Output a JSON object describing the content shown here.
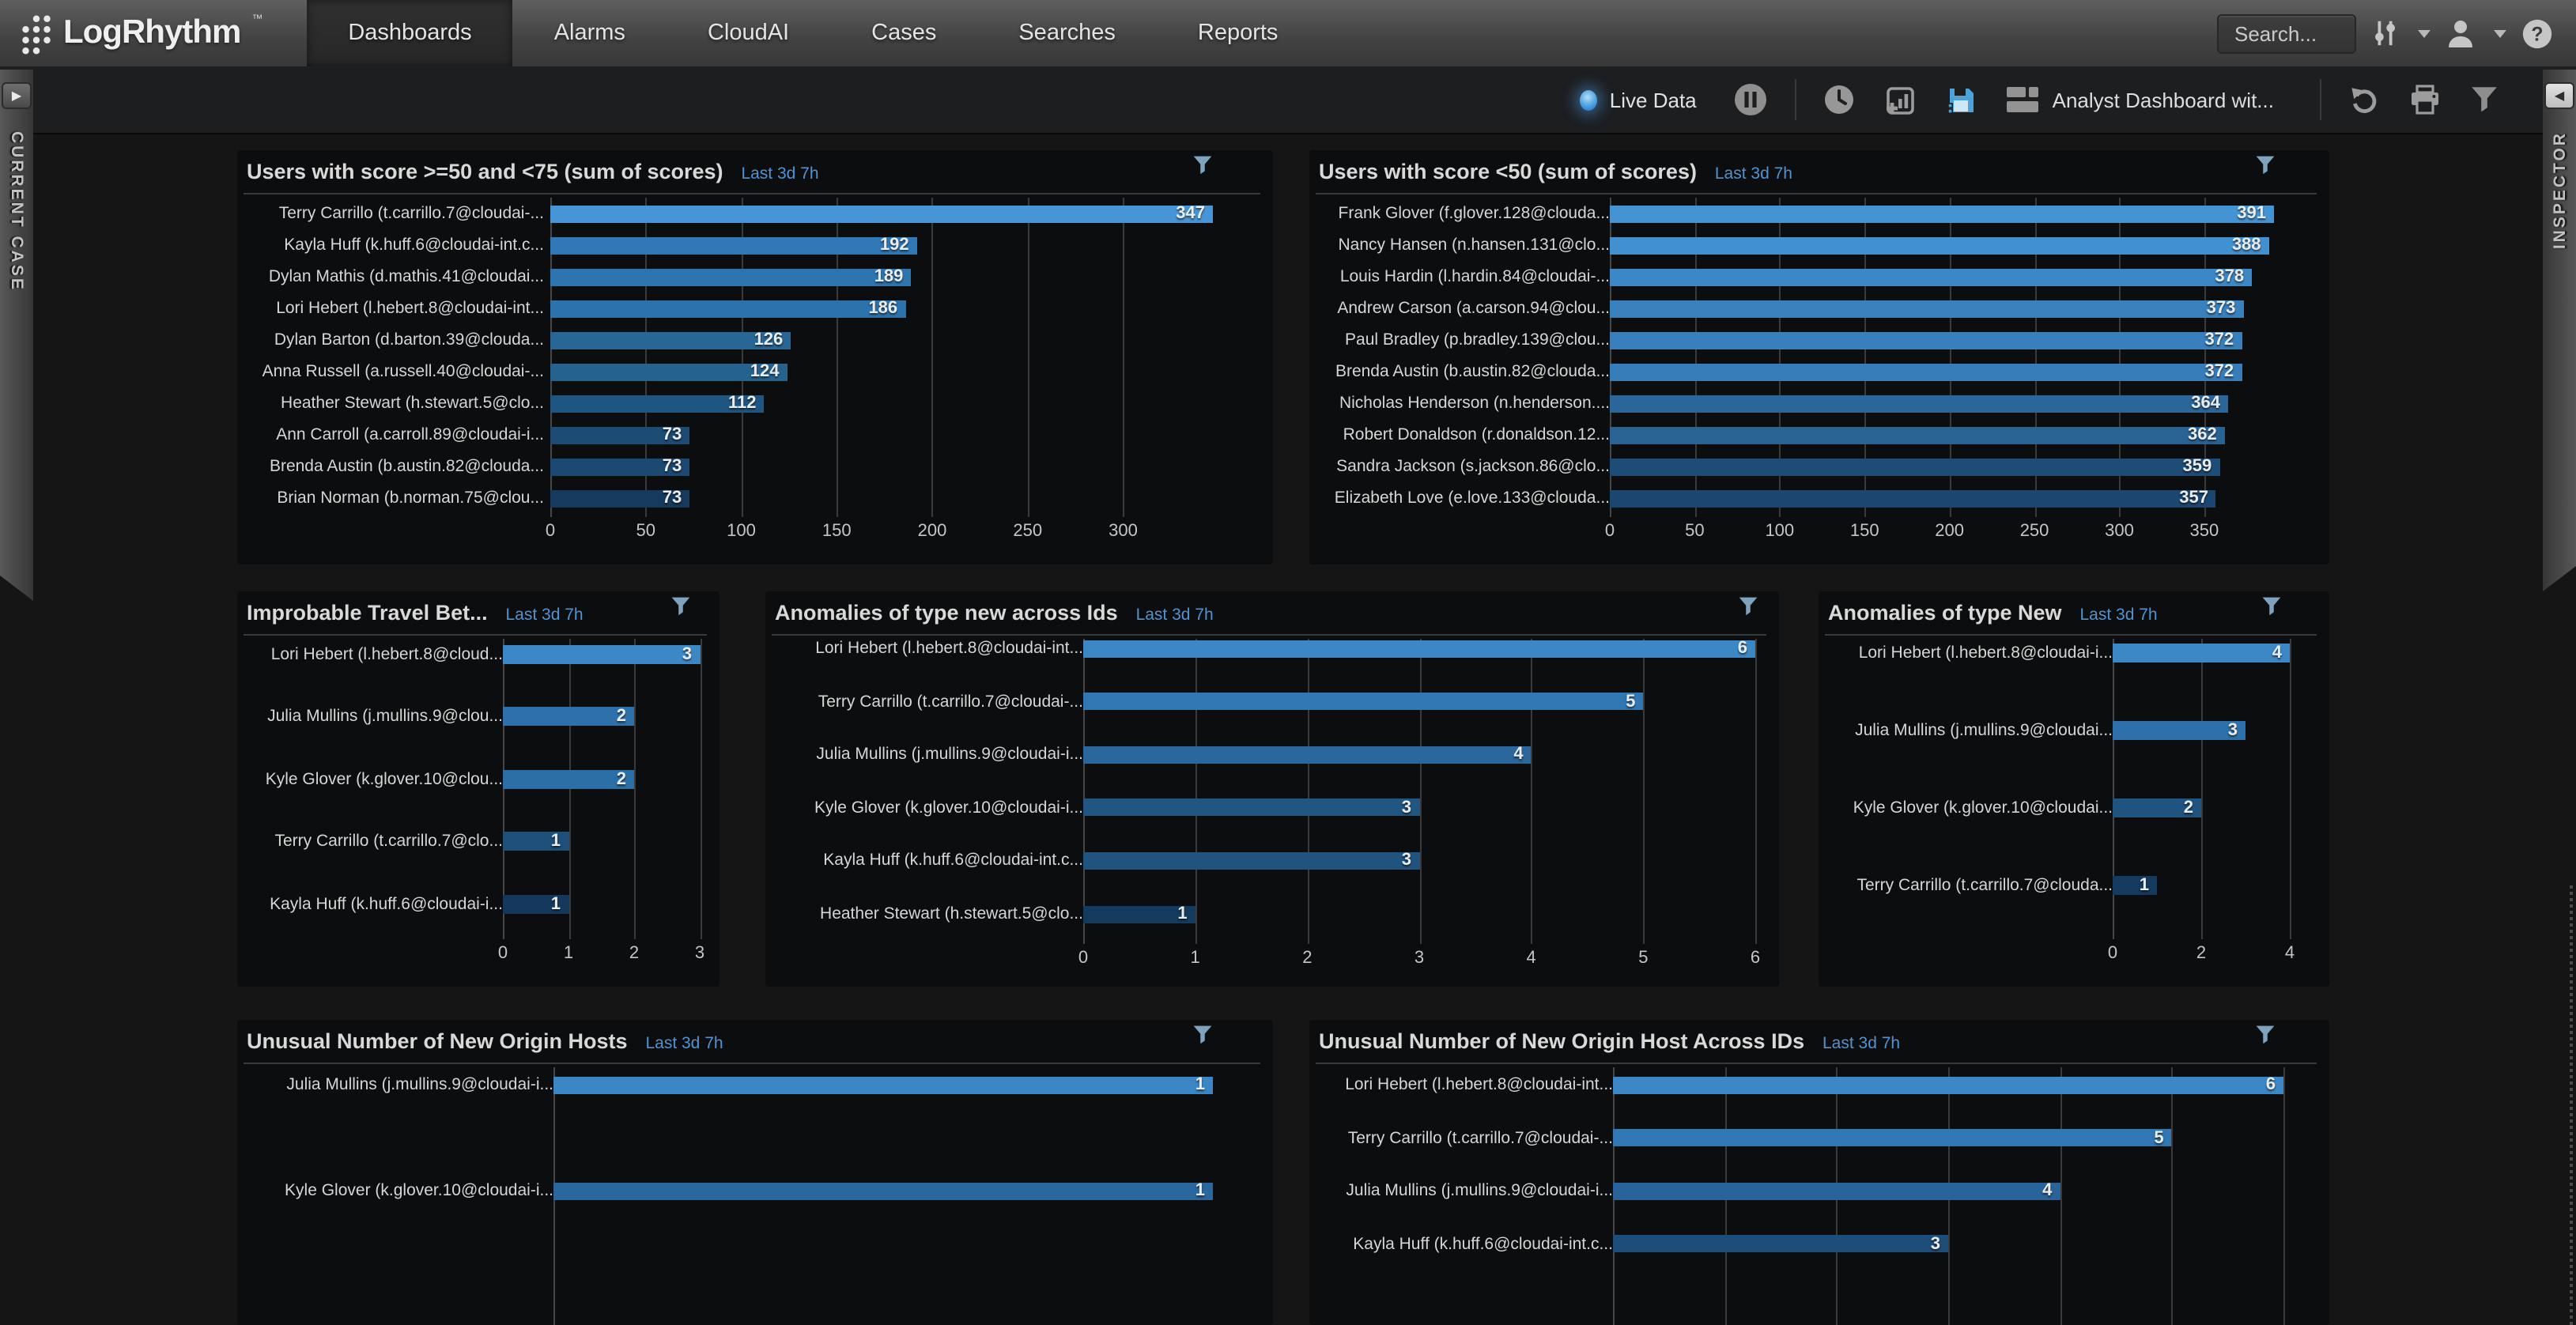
{
  "header": {
    "logo_text": "LogRhythm",
    "logo_tm": "™",
    "nav_tabs": [
      {
        "label": "Dashboards",
        "active": true
      },
      {
        "label": "Alarms",
        "active": false
      },
      {
        "label": "CloudAI",
        "active": false
      },
      {
        "label": "Cases",
        "active": false
      },
      {
        "label": "Searches",
        "active": false
      },
      {
        "label": "Reports",
        "active": false
      }
    ],
    "search_button": "Search..."
  },
  "toolbar": {
    "live_data_label": "Live Data",
    "dashboard_name": "Analyst Dashboard wit..."
  },
  "side_tabs": {
    "left": "CURRENT CASE",
    "right": "INSPECTOR"
  },
  "colors": {
    "accent_blue": "#4f94d4",
    "live_dot": "#57aae6",
    "save_icon": "#4ba2dd",
    "funnel_icon": "#7fa3bd",
    "grid": "#3a3a3a",
    "panel_bg": "#0c0d0e",
    "page_bg": "#151515",
    "bar_lightest": "#4795d6",
    "bar_darkest": "#143a5e"
  },
  "chart_data": [
    {
      "id": "users-score-50-75",
      "type": "bar",
      "orientation": "horizontal",
      "title": "Users with score >=50 and <75 (sum of scores)",
      "time_range": "Last 3d 7h",
      "categories": [
        "Terry Carrillo (t.carrillo.7@cloudai-...",
        "Kayla Huff (k.huff.6@cloudai-int.c...",
        "Dylan Mathis (d.mathis.41@cloudai...",
        "Lori Hebert (l.hebert.8@cloudai-int...",
        "Dylan Barton (d.barton.39@clouda...",
        "Anna Russell (a.russell.40@cloudai-...",
        "Heather Stewart (h.stewart.5@clo...",
        "Ann Carroll (a.carroll.89@cloudai-i...",
        "Brenda Austin (b.austin.82@clouda...",
        "Brian Norman (b.norman.75@clou..."
      ],
      "values": [
        347,
        192,
        189,
        186,
        126,
        124,
        112,
        73,
        73,
        73
      ],
      "bar_colors": [
        "#4795d6",
        "#2f78b5",
        "#2e75b0",
        "#2c72ab",
        "#286695",
        "#266290",
        "#1f5581",
        "#1c4b74",
        "#1b4971",
        "#153a5d"
      ],
      "ticks": [
        0,
        50,
        100,
        150,
        200,
        250,
        300
      ],
      "xlim": [
        0,
        347
      ],
      "axis_labels_visible": true,
      "grid": "vertical"
    },
    {
      "id": "users-score-lt50",
      "type": "bar",
      "orientation": "horizontal",
      "title": "Users with score <50 (sum of scores)",
      "time_range": "Last 3d 7h",
      "categories": [
        "Frank Glover (f.glover.128@clouda...",
        "Nancy Hansen (n.hansen.131@clo...",
        "Louis Hardin (l.hardin.84@cloudai-...",
        "Andrew Carson (a.carson.94@clou...",
        "Paul Bradley (p.bradley.139@clou...",
        "Brenda Austin (b.austin.82@clouda...",
        "Nicholas Henderson (n.henderson....",
        "Robert Donaldson (r.donaldson.12...",
        "Sandra Jackson (s.jackson.86@clo...",
        "Elizabeth Love (e.love.133@clouda..."
      ],
      "values": [
        391,
        388,
        378,
        373,
        372,
        372,
        364,
        362,
        359,
        357
      ],
      "bar_colors": [
        "#4493d3",
        "#4190d0",
        "#3c88c6",
        "#3981bd",
        "#387fbb",
        "#377dba",
        "#2b6698",
        "#296394",
        "#1d4c77",
        "#1a4670"
      ],
      "ticks": [
        0,
        50,
        100,
        150,
        200,
        250,
        300,
        350
      ],
      "xlim": [
        0,
        391
      ],
      "axis_labels_visible": true,
      "grid": "vertical"
    },
    {
      "id": "improbable-travel",
      "type": "bar",
      "orientation": "horizontal",
      "title": "Improbable Travel Bet...",
      "time_range": "Last 3d 7h",
      "categories": [
        "Lori Hebert (l.hebert.8@cloud...",
        "Julia Mullins (j.mullins.9@clou...",
        "Kyle Glover (k.glover.10@clou...",
        "Terry Carrillo (t.carrillo.7@clo...",
        "Kayla Huff (k.huff.6@cloudai-i..."
      ],
      "values": [
        3,
        2,
        2,
        1,
        1
      ],
      "bar_colors": [
        "#3c88c7",
        "#2e71aa",
        "#2c6ea6",
        "#1e4e7a",
        "#15395c"
      ],
      "ticks": [
        0,
        1,
        2,
        3
      ],
      "xlim": [
        0,
        3
      ],
      "axis_labels_visible": true,
      "grid": "vertical"
    },
    {
      "id": "anomalies-new-across-ids",
      "type": "bar",
      "orientation": "horizontal",
      "title": "Anomalies of type new across Ids",
      "time_range": "Last 3d 7h",
      "categories": [
        "Lori Hebert (l.hebert.8@cloudai-int...",
        "Terry Carrillo (t.carrillo.7@cloudai-...",
        "Julia Mullins (j.mullins.9@cloudai-i...",
        "Kyle Glover (k.glover.10@cloudai-i...",
        "Kayla Huff (k.huff.6@cloudai-int.c...",
        "Heather Stewart (h.stewart.5@clo..."
      ],
      "values": [
        6,
        5,
        4,
        3,
        3,
        1
      ],
      "bar_colors": [
        "#3c88c7",
        "#3078b4",
        "#2a679d",
        "#225682",
        "#21537f",
        "#143a5e"
      ],
      "ticks": [
        0,
        1,
        2,
        3,
        4,
        5,
        6
      ],
      "xlim": [
        0,
        6
      ],
      "axis_labels_visible": true,
      "grid": "vertical"
    },
    {
      "id": "anomalies-new",
      "type": "bar",
      "orientation": "horizontal",
      "title": "Anomalies of type New",
      "time_range": "Last 3d 7h",
      "categories": [
        "Lori Hebert (l.hebert.8@cloudai-i...",
        "Julia Mullins (j.mullins.9@cloudai...",
        "Kyle Glover (k.glover.10@cloudai...",
        "Terry Carrillo (t.carrillo.7@clouda..."
      ],
      "values": [
        4,
        3,
        2,
        1
      ],
      "bar_colors": [
        "#3c88c7",
        "#2e71aa",
        "#1f5380",
        "#143a5e"
      ],
      "ticks": [
        0,
        2,
        4
      ],
      "xlim": [
        0,
        4
      ],
      "axis_labels_visible": true,
      "grid": "vertical"
    },
    {
      "id": "unusual-new-origin-hosts",
      "type": "bar",
      "orientation": "horizontal",
      "title": "Unusual Number of New Origin Hosts",
      "time_range": "Last 3d 7h",
      "categories": [
        "Julia Mullins (j.mullins.9@cloudai-i...",
        "Kyle Glover (k.glover.10@cloudai-i..."
      ],
      "values": [
        1,
        1
      ],
      "bar_colors": [
        "#3b86c5",
        "#2a679d"
      ],
      "ticks": [
        0
      ],
      "xlim": [
        0,
        1
      ],
      "axis_labels_visible": false,
      "grid": "vertical"
    },
    {
      "id": "unusual-new-origin-host-across-ids",
      "type": "bar",
      "orientation": "horizontal",
      "title": "Unusual Number of New Origin Host Across IDs",
      "time_range": "Last 3d 7h",
      "categories": [
        "Lori Hebert (l.hebert.8@cloudai-int...",
        "Terry Carrillo (t.carrillo.7@cloudai-...",
        "Julia Mullins (j.mullins.9@cloudai-i...",
        "Kayla Huff (k.huff.6@cloudai-int.c..."
      ],
      "values": [
        6,
        5,
        4,
        3
      ],
      "bar_colors": [
        "#3c88c7",
        "#3077b3",
        "#28639a",
        "#1d4d79"
      ],
      "ticks": [
        0,
        1,
        2,
        3,
        4,
        5,
        6
      ],
      "xlim": [
        0,
        6
      ],
      "axis_labels_visible": false,
      "grid": "vertical"
    }
  ]
}
